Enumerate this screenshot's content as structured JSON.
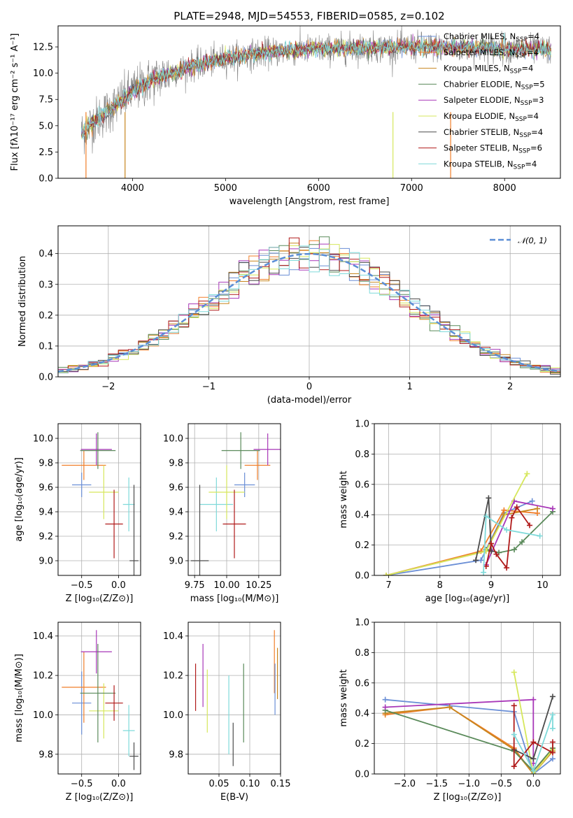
{
  "figure": {
    "background": "#ffffff"
  },
  "colors": {
    "chabrier_miles": "#6b8fd6",
    "salpeter_miles": "#f07f2a",
    "kroupa_miles": "#c8861f",
    "chabrier_elodie": "#5a8a5a",
    "salpeter_elodie": "#a837b8",
    "kroupa_elodie": "#d6e75c",
    "chabrier_stelib": "#4b4b4b",
    "salpeter_stelib": "#b01a1a",
    "kroupa_stelib": "#7fdada",
    "normal_curve": "#5b8ed6",
    "spectrum_data": "#808080"
  },
  "chart_data": [
    {
      "id": "spectrum",
      "type": "line",
      "title": "PLATE=2948, MJD=54553, FIBERID=0585, z=0.102",
      "xlabel": "wavelength [Angstrom, rest frame]",
      "ylabel": "Flux [fλ10⁻¹⁷ erg cm⁻² s⁻¹ A⁻¹]",
      "xlim": [
        3200,
        8600
      ],
      "ylim": [
        0,
        14.5
      ],
      "xticks": [
        4000,
        5000,
        6000,
        7000,
        8000
      ],
      "yticks": [
        0.0,
        2.5,
        5.0,
        7.5,
        10.0,
        12.5
      ],
      "ytick_labels": [
        "0.0",
        "2.5",
        "5.0",
        "7.5",
        "10.0",
        "12.5"
      ],
      "grid": false,
      "legend_position": "right",
      "continuum": {
        "x": [
          3450,
          3600,
          3800,
          4000,
          4200,
          4400,
          4600,
          4800,
          5000,
          5200,
          5400,
          5600,
          5800,
          6000,
          6200,
          6400,
          6600,
          6800,
          7000,
          7200,
          7400,
          7600,
          7800,
          8000,
          8200,
          8500
        ],
        "y": [
          4.3,
          5.5,
          6.8,
          8.3,
          9.3,
          10.0,
          10.6,
          11.0,
          11.4,
          11.7,
          11.9,
          12.1,
          12.2,
          12.3,
          12.3,
          12.4,
          12.4,
          12.45,
          12.5,
          12.5,
          12.45,
          12.4,
          12.4,
          12.35,
          12.3,
          12.2
        ]
      },
      "series": [
        {
          "name": "Chabrier MILES, N_SSP=4",
          "color_key": "chabrier_miles"
        },
        {
          "name": "Salpeter MILES, N_SSP=4",
          "color_key": "salpeter_miles"
        },
        {
          "name": "Kroupa MILES, N_SSP=4",
          "color_key": "kroupa_miles"
        },
        {
          "name": "Chabrier ELODIE, N_SSP=5",
          "color_key": "chabrier_elodie"
        },
        {
          "name": "Salpeter ELODIE, N_SSP=3",
          "color_key": "salpeter_elodie"
        },
        {
          "name": "Kroupa ELODIE, N_SSP=4",
          "color_key": "kroupa_elodie"
        },
        {
          "name": "Chabrier STELIB, N_SSP=4",
          "color_key": "chabrier_stelib"
        },
        {
          "name": "Salpeter STELIB, N_SSP=6",
          "color_key": "salpeter_stelib"
        },
        {
          "name": "Kroupa STELIB, N_SSP=4",
          "color_key": "kroupa_stelib"
        }
      ],
      "legend_labels": [
        {
          "prefix": "Chabrier MILES, N",
          "sub": "SSP",
          "suffix": "=4"
        },
        {
          "prefix": "Salpeter MILES, N",
          "sub": "SSP",
          "suffix": "=4"
        },
        {
          "prefix": "Kroupa MILES, N",
          "sub": "SSP",
          "suffix": "=4"
        },
        {
          "prefix": "Chabrier ELODIE, N",
          "sub": "SSP",
          "suffix": "=5"
        },
        {
          "prefix": "Salpeter ELODIE, N",
          "sub": "SSP",
          "suffix": "=3"
        },
        {
          "prefix": "Kroupa ELODIE, N",
          "sub": "SSP",
          "suffix": "=4"
        },
        {
          "prefix": "Chabrier STELIB, N",
          "sub": "SSP",
          "suffix": "=4"
        },
        {
          "prefix": "Salpeter STELIB, N",
          "sub": "SSP",
          "suffix": "=6"
        },
        {
          "prefix": "Kroupa STELIB, N",
          "sub": "SSP",
          "suffix": "=4"
        }
      ],
      "vertical_lines": [
        {
          "x": 3500,
          "color_key": "salpeter_miles"
        },
        {
          "x": 3920,
          "color_key": "kroupa_miles"
        },
        {
          "x": 6800,
          "color_key": "kroupa_elodie"
        },
        {
          "x": 7420,
          "color_key": "salpeter_miles"
        }
      ]
    },
    {
      "id": "residuals",
      "type": "step",
      "xlabel": "(data-model)/error",
      "ylabel": "Normed distribution",
      "xlim": [
        -2.5,
        2.5
      ],
      "ylim": [
        0,
        0.49
      ],
      "xticks": [
        -2,
        -1,
        0,
        1,
        2
      ],
      "xtick_labels": [
        "−2",
        "−1",
        "0",
        "1",
        "2"
      ],
      "yticks": [
        0.0,
        0.1,
        0.2,
        0.3,
        0.4
      ],
      "ytick_labels": [
        "0.0",
        "0.1",
        "0.2",
        "0.3",
        "0.4"
      ],
      "grid": true,
      "legend": {
        "label": "𝒩(0, 1)",
        "position": "top-right",
        "color_key": "normal_curve"
      },
      "normal": {
        "mean": 0,
        "sigma": 1
      },
      "bin_width": 0.1
    },
    {
      "id": "age-vs-z",
      "type": "errorbar",
      "xlabel": "Z [log₁₀(Z/Z⊙)]",
      "ylabel": "age  [log₁₀(age/yr)]",
      "xlim": [
        -0.82,
        0.3
      ],
      "ylim": [
        8.88,
        10.12
      ],
      "xticks": [
        -0.5,
        0.0
      ],
      "xtick_labels": [
        "−0.5",
        "0.0"
      ],
      "yticks": [
        9.0,
        9.2,
        9.4,
        9.6,
        9.8,
        10.0
      ],
      "ytick_labels": [
        "9.0",
        "9.2",
        "9.4",
        "9.6",
        "9.8",
        "10.0"
      ],
      "grid": true,
      "points": [
        {
          "color_key": "chabrier_miles",
          "x": -0.5,
          "xerr": 0.13,
          "y": 9.62,
          "yerr": 0.1
        },
        {
          "color_key": "salpeter_miles",
          "x": -0.47,
          "xerr": 0.3,
          "y": 9.78,
          "yerr": 0.12
        },
        {
          "color_key": "kroupa_stelib",
          "x": 0.14,
          "xerr": 0.08,
          "y": 9.46,
          "yerr": 0.22
        },
        {
          "color_key": "salpeter_elodie",
          "x": -0.3,
          "xerr": 0.21,
          "y": 9.91,
          "yerr": 0.13
        },
        {
          "color_key": "kroupa_elodie",
          "x": -0.2,
          "xerr": 0.2,
          "y": 9.56,
          "yerr": 0.22
        },
        {
          "color_key": "chabrier_elodie",
          "x": -0.28,
          "xerr": 0.24,
          "y": 9.9,
          "yerr": 0.15
        },
        {
          "color_key": "salpeter_stelib",
          "x": -0.06,
          "xerr": 0.12,
          "y": 9.3,
          "yerr": 0.28
        },
        {
          "color_key": "chabrier_stelib",
          "x": 0.21,
          "xerr": 0.06,
          "y": 9.0,
          "yerr": 0.62
        }
      ]
    },
    {
      "id": "age-vs-mass",
      "type": "errorbar",
      "xlabel": "mass [log₁₀(M/M⊙)]",
      "ylabel": "",
      "xlim": [
        9.7,
        10.42
      ],
      "ylim": [
        8.88,
        10.12
      ],
      "xticks": [
        9.75,
        10.0,
        10.25
      ],
      "xtick_labels": [
        "9.75",
        "10.00",
        "10.25"
      ],
      "yticks": [
        9.0,
        9.2,
        9.4,
        9.6,
        9.8,
        10.0
      ],
      "ytick_labels": [
        "9.0",
        "9.2",
        "9.4",
        "9.6",
        "9.8",
        "10.0"
      ],
      "grid": true,
      "points": [
        {
          "color_key": "chabrier_miles",
          "x": 10.14,
          "xerr": 0.08,
          "y": 9.62,
          "yerr": 0.1
        },
        {
          "color_key": "salpeter_miles",
          "x": 10.24,
          "xerr": 0.1,
          "y": 9.78,
          "yerr": 0.12
        },
        {
          "color_key": "kroupa_stelib",
          "x": 9.92,
          "xerr": 0.13,
          "y": 9.46,
          "yerr": 0.22
        },
        {
          "color_key": "salpeter_elodie",
          "x": 10.32,
          "xerr": 0.11,
          "y": 9.91,
          "yerr": 0.13
        },
        {
          "color_key": "kroupa_elodie",
          "x": 10.0,
          "xerr": 0.14,
          "y": 9.56,
          "yerr": 0.22
        },
        {
          "color_key": "chabrier_elodie",
          "x": 10.11,
          "xerr": 0.15,
          "y": 9.9,
          "yerr": 0.15
        },
        {
          "color_key": "salpeter_stelib",
          "x": 10.06,
          "xerr": 0.09,
          "y": 9.3,
          "yerr": 0.28
        },
        {
          "color_key": "chabrier_stelib",
          "x": 9.79,
          "xerr": 0.07,
          "y": 9.0,
          "yerr": 0.62
        }
      ]
    },
    {
      "id": "weight-vs-age",
      "type": "line",
      "xlabel": "age  [log₁₀(age/yr)]",
      "ylabel": "mass weight",
      "xlim": [
        6.72,
        10.35
      ],
      "ylim": [
        0,
        1
      ],
      "xticks": [
        7,
        8,
        9,
        10
      ],
      "xtick_labels": [
        "7",
        "8",
        "9",
        "10"
      ],
      "yticks": [
        0.0,
        0.2,
        0.4,
        0.6,
        0.8,
        1.0
      ],
      "ytick_labels": [
        "0.0",
        "0.2",
        "0.4",
        "0.6",
        "0.8",
        "1.0"
      ],
      "grid": true,
      "series": [
        {
          "color_key": "chabrier_miles",
          "x": [
            6.95,
            8.8,
            9.25,
            9.8
          ],
          "y": [
            0.0,
            0.1,
            0.41,
            0.49
          ]
        },
        {
          "color_key": "salpeter_miles",
          "x": [
            6.95,
            8.8,
            9.25,
            9.9
          ],
          "y": [
            0.0,
            0.16,
            0.43,
            0.41
          ]
        },
        {
          "color_key": "kroupa_miles",
          "x": [
            6.95,
            8.9,
            9.25,
            9.9
          ],
          "y": [
            0.0,
            0.16,
            0.4,
            0.44
          ]
        },
        {
          "color_key": "chabrier_elodie",
          "x": [
            8.9,
            9.15,
            9.45,
            9.6,
            10.2
          ],
          "y": [
            0.17,
            0.15,
            0.17,
            0.22,
            0.42
          ]
        },
        {
          "color_key": "salpeter_elodie",
          "x": [
            8.9,
            9.45,
            10.2
          ],
          "y": [
            0.07,
            0.49,
            0.44
          ]
        },
        {
          "color_key": "kroupa_elodie",
          "x": [
            6.95,
            8.9,
            9.7
          ],
          "y": [
            0.0,
            0.16,
            0.67
          ]
        },
        {
          "color_key": "chabrier_stelib",
          "x": [
            8.7,
            8.95,
            9.0
          ],
          "y": [
            0.1,
            0.51,
            0.16
          ]
        },
        {
          "color_key": "salpeter_stelib",
          "x": [
            8.9,
            9.0,
            9.1,
            9.3,
            9.4,
            9.5,
            9.75
          ],
          "y": [
            0.06,
            0.21,
            0.14,
            0.05,
            0.38,
            0.45,
            0.33
          ]
        },
        {
          "color_key": "kroupa_stelib",
          "x": [
            8.85,
            8.9,
            9.3,
            9.95
          ],
          "y": [
            0.02,
            0.39,
            0.3,
            0.26
          ]
        }
      ]
    },
    {
      "id": "mass-vs-z",
      "type": "errorbar",
      "xlabel": "Z [log₁₀(Z/Z⊙)]",
      "ylabel": "mass [log₁₀(M/M⊙)]",
      "xlim": [
        -0.82,
        0.3
      ],
      "ylim": [
        9.7,
        10.47
      ],
      "xticks": [
        -0.5,
        0.0
      ],
      "xtick_labels": [
        "−0.5",
        "0.0"
      ],
      "yticks": [
        9.8,
        10.0,
        10.2,
        10.4
      ],
      "ytick_labels": [
        "9.8",
        "10.0",
        "10.2",
        "10.4"
      ],
      "grid": true,
      "points": [
        {
          "color_key": "chabrier_miles",
          "x": -0.5,
          "xerr": 0.13,
          "y": 10.06,
          "yerr": 0.16
        },
        {
          "color_key": "salpeter_miles",
          "x": -0.47,
          "xerr": 0.3,
          "y": 10.14,
          "yerr": 0.18
        },
        {
          "color_key": "salpeter_elodie",
          "x": -0.3,
          "xerr": 0.21,
          "y": 10.32,
          "yerr": 0.11
        },
        {
          "color_key": "kroupa_elodie",
          "x": -0.2,
          "xerr": 0.2,
          "y": 10.02,
          "yerr": 0.14
        },
        {
          "color_key": "chabrier_elodie",
          "x": -0.28,
          "xerr": 0.24,
          "y": 10.11,
          "yerr": 0.25
        },
        {
          "color_key": "salpeter_stelib",
          "x": -0.06,
          "xerr": 0.12,
          "y": 10.06,
          "yerr": 0.09
        },
        {
          "color_key": "kroupa_stelib",
          "x": 0.14,
          "xerr": 0.08,
          "y": 9.92,
          "yerr": 0.13
        },
        {
          "color_key": "chabrier_stelib",
          "x": 0.21,
          "xerr": 0.06,
          "y": 9.79,
          "yerr": 0.07
        }
      ]
    },
    {
      "id": "mass-vs-ebv",
      "type": "errorbar",
      "xlabel": "E(B-V)",
      "ylabel": "",
      "xlim": [
        0.0,
        0.15
      ],
      "ylim": [
        9.7,
        10.47
      ],
      "xticks": [
        0.05,
        0.1,
        0.15
      ],
      "xtick_labels": [
        "0.05",
        "0.10",
        "0.15"
      ],
      "yticks": [
        9.8,
        10.0,
        10.2,
        10.4
      ],
      "ytick_labels": [
        "9.8",
        "10.0",
        "10.2",
        "10.4"
      ],
      "grid": true,
      "points": [
        {
          "color_key": "salpeter_stelib",
          "x": 0.012,
          "y": 10.14,
          "yerr": 0.12
        },
        {
          "color_key": "salpeter_elodie",
          "x": 0.024,
          "y": 10.2,
          "yerr": 0.16
        },
        {
          "color_key": "kroupa_elodie",
          "x": 0.031,
          "y": 10.07,
          "yerr": 0.16
        },
        {
          "color_key": "kroupa_stelib",
          "x": 0.066,
          "y": 10.0,
          "yerr": 0.2
        },
        {
          "color_key": "chabrier_stelib",
          "x": 0.073,
          "y": 9.85,
          "yerr": 0.11
        },
        {
          "color_key": "chabrier_elodie",
          "x": 0.09,
          "y": 10.06,
          "yerr": 0.2
        },
        {
          "color_key": "salpeter_miles",
          "x": 0.14,
          "y": 10.27,
          "yerr": 0.16
        },
        {
          "color_key": "chabrier_miles",
          "x": 0.141,
          "y": 10.13,
          "yerr": 0.13
        },
        {
          "color_key": "kroupa_miles",
          "x": 0.145,
          "y": 10.21,
          "yerr": 0.13
        }
      ]
    },
    {
      "id": "weight-vs-z",
      "type": "line",
      "xlabel": "Z [log₁₀(Z/Z⊙)]",
      "ylabel": "mass weight",
      "xlim": [
        -2.47,
        0.42
      ],
      "ylim": [
        0,
        1
      ],
      "xticks": [
        -2.0,
        -1.5,
        -1.0,
        -0.5,
        0.0
      ],
      "xtick_labels": [
        "−2.0",
        "−1.5",
        "−1.0",
        "−0.5",
        "0.0"
      ],
      "yticks": [
        0.0,
        0.2,
        0.4,
        0.6,
        0.8,
        1.0
      ],
      "ytick_labels": [
        "0.0",
        "0.2",
        "0.4",
        "0.6",
        "0.8",
        "1.0"
      ],
      "grid": true,
      "series": [
        {
          "color_key": "chabrier_miles",
          "x": [
            -2.3,
            -0.3,
            0.0,
            0.3
          ],
          "y": [
            0.49,
            0.41,
            0.0,
            0.1
          ]
        },
        {
          "color_key": "salpeter_miles",
          "x": [
            -2.3,
            -1.3,
            -0.3,
            0.0,
            0.3
          ],
          "y": [
            0.39,
            0.44,
            0.17,
            0.0,
            0.17
          ]
        },
        {
          "color_key": "kroupa_miles",
          "x": [
            -2.3,
            -1.3,
            -0.3,
            0.0,
            0.3
          ],
          "y": [
            0.4,
            0.44,
            0.16,
            0.0,
            0.15
          ]
        },
        {
          "color_key": "chabrier_elodie",
          "x": [
            -2.3,
            -0.3,
            0.0,
            0.3
          ],
          "y": [
            0.42,
            0.15,
            0.02,
            0.17
          ]
        },
        {
          "color_key": "salpeter_elodie",
          "x": [
            -2.3,
            0.0,
            0.0
          ],
          "y": [
            0.44,
            0.49,
            0.07
          ]
        },
        {
          "color_key": "kroupa_elodie",
          "x": [
            -0.3,
            0.0,
            0.3
          ],
          "y": [
            0.67,
            0.0,
            0.16
          ]
        },
        {
          "color_key": "chabrier_stelib",
          "x": [
            -0.3,
            0.0,
            0.3
          ],
          "y": [
            0.16,
            0.1,
            0.51
          ]
        },
        {
          "color_key": "salpeter_stelib",
          "x": [
            -0.3,
            -0.3,
            0.0,
            0.3,
            0.3
          ],
          "y": [
            0.45,
            0.05,
            0.21,
            0.14,
            0.21
          ]
        },
        {
          "color_key": "kroupa_stelib",
          "x": [
            -0.3,
            0.0,
            0.3,
            0.3
          ],
          "y": [
            0.26,
            0.02,
            0.39,
            0.3
          ]
        }
      ]
    }
  ]
}
